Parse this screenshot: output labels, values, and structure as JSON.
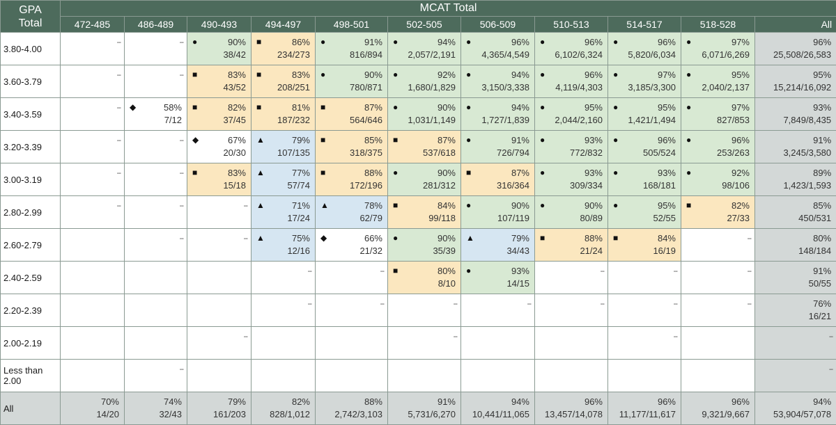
{
  "header": {
    "gpa_label_line1": "GPA",
    "gpa_label_line2": "Total",
    "mcat_label": "MCAT Total"
  },
  "columns": [
    "472-485",
    "486-489",
    "490-493",
    "494-497",
    "498-501",
    "502-505",
    "506-509",
    "510-513",
    "514-517",
    "518-528",
    "All"
  ],
  "legend_symbols": {
    "dot": "●",
    "square": "■",
    "triangle": "▲",
    "diamond": "◆"
  },
  "colors": {
    "header": "#4d6b5c",
    "green": "#d8e9d3",
    "yellow": "#fbe7bf",
    "blue": "#d6e6f2",
    "gray": "#d3d8d7"
  },
  "rows": [
    {
      "label": "3.80-4.00",
      "cells": [
        {
          "t": "dash"
        },
        {
          "t": "dash"
        },
        {
          "pct": "90%",
          "frac": "38/42",
          "sym": "●",
          "c": "green"
        },
        {
          "pct": "86%",
          "frac": "234/273",
          "sym": "■",
          "c": "yellow"
        },
        {
          "pct": "91%",
          "frac": "816/894",
          "sym": "●",
          "c": "green"
        },
        {
          "pct": "94%",
          "frac": "2,057/2,191",
          "sym": "●",
          "c": "green"
        },
        {
          "pct": "96%",
          "frac": "4,365/4,549",
          "sym": "●",
          "c": "green"
        },
        {
          "pct": "96%",
          "frac": "6,102/6,324",
          "sym": "●",
          "c": "green"
        },
        {
          "pct": "96%",
          "frac": "5,820/6,034",
          "sym": "●",
          "c": "green"
        },
        {
          "pct": "97%",
          "frac": "6,071/6,269",
          "sym": "●",
          "c": "green"
        },
        {
          "pct": "96%",
          "frac": "25,508/26,583",
          "c": "gray"
        }
      ]
    },
    {
      "label": "3.60-3.79",
      "cells": [
        {
          "t": "dash"
        },
        {
          "t": "dash"
        },
        {
          "pct": "83%",
          "frac": "43/52",
          "sym": "■",
          "c": "yellow"
        },
        {
          "pct": "83%",
          "frac": "208/251",
          "sym": "■",
          "c": "yellow"
        },
        {
          "pct": "90%",
          "frac": "780/871",
          "sym": "●",
          "c": "green"
        },
        {
          "pct": "92%",
          "frac": "1,680/1,829",
          "sym": "●",
          "c": "green"
        },
        {
          "pct": "94%",
          "frac": "3,150/3,338",
          "sym": "●",
          "c": "green"
        },
        {
          "pct": "96%",
          "frac": "4,119/4,303",
          "sym": "●",
          "c": "green"
        },
        {
          "pct": "97%",
          "frac": "3,185/3,300",
          "sym": "●",
          "c": "green"
        },
        {
          "pct": "95%",
          "frac": "2,040/2,137",
          "sym": "●",
          "c": "green"
        },
        {
          "pct": "95%",
          "frac": "15,214/16,092",
          "c": "gray"
        }
      ]
    },
    {
      "label": "3.40-3.59",
      "cells": [
        {
          "t": "dash"
        },
        {
          "pct": "58%",
          "frac": "7/12",
          "sym": "◆",
          "c": "white"
        },
        {
          "pct": "82%",
          "frac": "37/45",
          "sym": "■",
          "c": "yellow"
        },
        {
          "pct": "81%",
          "frac": "187/232",
          "sym": "■",
          "c": "yellow"
        },
        {
          "pct": "87%",
          "frac": "564/646",
          "sym": "■",
          "c": "yellow"
        },
        {
          "pct": "90%",
          "frac": "1,031/1,149",
          "sym": "●",
          "c": "green"
        },
        {
          "pct": "94%",
          "frac": "1,727/1,839",
          "sym": "●",
          "c": "green"
        },
        {
          "pct": "95%",
          "frac": "2,044/2,160",
          "sym": "●",
          "c": "green"
        },
        {
          "pct": "95%",
          "frac": "1,421/1,494",
          "sym": "●",
          "c": "green"
        },
        {
          "pct": "97%",
          "frac": "827/853",
          "sym": "●",
          "c": "green"
        },
        {
          "pct": "93%",
          "frac": "7,849/8,435",
          "c": "gray"
        }
      ]
    },
    {
      "label": "3.20-3.39",
      "cells": [
        {
          "t": "dash"
        },
        {
          "t": "dash"
        },
        {
          "pct": "67%",
          "frac": "20/30",
          "sym": "◆",
          "c": "white"
        },
        {
          "pct": "79%",
          "frac": "107/135",
          "sym": "▲",
          "c": "blue"
        },
        {
          "pct": "85%",
          "frac": "318/375",
          "sym": "■",
          "c": "yellow"
        },
        {
          "pct": "87%",
          "frac": "537/618",
          "sym": "■",
          "c": "yellow"
        },
        {
          "pct": "91%",
          "frac": "726/794",
          "sym": "●",
          "c": "green"
        },
        {
          "pct": "93%",
          "frac": "772/832",
          "sym": "●",
          "c": "green"
        },
        {
          "pct": "96%",
          "frac": "505/524",
          "sym": "●",
          "c": "green"
        },
        {
          "pct": "96%",
          "frac": "253/263",
          "sym": "●",
          "c": "green"
        },
        {
          "pct": "91%",
          "frac": "3,245/3,580",
          "c": "gray"
        }
      ]
    },
    {
      "label": "3.00-3.19",
      "cells": [
        {
          "t": "dash"
        },
        {
          "t": "dash"
        },
        {
          "pct": "83%",
          "frac": "15/18",
          "sym": "■",
          "c": "yellow"
        },
        {
          "pct": "77%",
          "frac": "57/74",
          "sym": "▲",
          "c": "blue"
        },
        {
          "pct": "88%",
          "frac": "172/196",
          "sym": "■",
          "c": "yellow"
        },
        {
          "pct": "90%",
          "frac": "281/312",
          "sym": "●",
          "c": "green"
        },
        {
          "pct": "87%",
          "frac": "316/364",
          "sym": "■",
          "c": "yellow"
        },
        {
          "pct": "93%",
          "frac": "309/334",
          "sym": "●",
          "c": "green"
        },
        {
          "pct": "93%",
          "frac": "168/181",
          "sym": "●",
          "c": "green"
        },
        {
          "pct": "92%",
          "frac": "98/106",
          "sym": "●",
          "c": "green"
        },
        {
          "pct": "89%",
          "frac": "1,423/1,593",
          "c": "gray"
        }
      ]
    },
    {
      "label": "2.80-2.99",
      "cells": [
        {
          "t": "dash"
        },
        {
          "t": "dash"
        },
        {
          "t": "dash"
        },
        {
          "pct": "71%",
          "frac": "17/24",
          "sym": "▲",
          "c": "blue"
        },
        {
          "pct": "78%",
          "frac": "62/79",
          "sym": "▲",
          "c": "blue"
        },
        {
          "pct": "84%",
          "frac": "99/118",
          "sym": "■",
          "c": "yellow"
        },
        {
          "pct": "90%",
          "frac": "107/119",
          "sym": "●",
          "c": "green"
        },
        {
          "pct": "90%",
          "frac": "80/89",
          "sym": "●",
          "c": "green"
        },
        {
          "pct": "95%",
          "frac": "52/55",
          "sym": "●",
          "c": "green"
        },
        {
          "pct": "82%",
          "frac": "27/33",
          "sym": "■",
          "c": "yellow"
        },
        {
          "pct": "85%",
          "frac": "450/531",
          "c": "gray"
        }
      ]
    },
    {
      "label": "2.60-2.79",
      "cells": [
        {
          "t": "empty"
        },
        {
          "t": "dash"
        },
        {
          "t": "dash"
        },
        {
          "pct": "75%",
          "frac": "12/16",
          "sym": "▲",
          "c": "blue"
        },
        {
          "pct": "66%",
          "frac": "21/32",
          "sym": "◆",
          "c": "white"
        },
        {
          "pct": "90%",
          "frac": "35/39",
          "sym": "●",
          "c": "green"
        },
        {
          "pct": "79%",
          "frac": "34/43",
          "sym": "▲",
          "c": "blue"
        },
        {
          "pct": "88%",
          "frac": "21/24",
          "sym": "■",
          "c": "yellow"
        },
        {
          "pct": "84%",
          "frac": "16/19",
          "sym": "■",
          "c": "yellow"
        },
        {
          "t": "dash"
        },
        {
          "pct": "80%",
          "frac": "148/184",
          "c": "gray"
        }
      ]
    },
    {
      "label": "2.40-2.59",
      "cells": [
        {
          "t": "empty"
        },
        {
          "t": "empty"
        },
        {
          "t": "empty"
        },
        {
          "t": "dash"
        },
        {
          "t": "dash"
        },
        {
          "pct": "80%",
          "frac": "8/10",
          "sym": "■",
          "c": "yellow"
        },
        {
          "pct": "93%",
          "frac": "14/15",
          "sym": "●",
          "c": "green"
        },
        {
          "t": "dash"
        },
        {
          "t": "dash"
        },
        {
          "t": "dash"
        },
        {
          "pct": "91%",
          "frac": "50/55",
          "c": "gray"
        }
      ]
    },
    {
      "label": "2.20-2.39",
      "cells": [
        {
          "t": "empty"
        },
        {
          "t": "empty"
        },
        {
          "t": "empty"
        },
        {
          "t": "dash"
        },
        {
          "t": "dash"
        },
        {
          "t": "dash"
        },
        {
          "t": "dash"
        },
        {
          "t": "dash"
        },
        {
          "t": "dash"
        },
        {
          "t": "dash"
        },
        {
          "pct": "76%",
          "frac": "16/21",
          "c": "gray"
        }
      ]
    },
    {
      "label": "2.00-2.19",
      "cells": [
        {
          "t": "empty"
        },
        {
          "t": "empty"
        },
        {
          "t": "dash"
        },
        {
          "t": "empty"
        },
        {
          "t": "empty"
        },
        {
          "t": "dash"
        },
        {
          "t": "empty"
        },
        {
          "t": "empty"
        },
        {
          "t": "dash"
        },
        {
          "t": "empty"
        },
        {
          "t": "dash",
          "c": "gray"
        }
      ]
    },
    {
      "label": "Less than 2.00",
      "cells": [
        {
          "t": "empty"
        },
        {
          "t": "dash"
        },
        {
          "t": "empty"
        },
        {
          "t": "empty"
        },
        {
          "t": "empty"
        },
        {
          "t": "empty"
        },
        {
          "t": "empty"
        },
        {
          "t": "empty"
        },
        {
          "t": "empty"
        },
        {
          "t": "empty"
        },
        {
          "t": "dash",
          "c": "gray"
        }
      ]
    },
    {
      "label": "All",
      "cells": [
        {
          "pct": "70%",
          "frac": "14/20",
          "c": "gray"
        },
        {
          "pct": "74%",
          "frac": "32/43",
          "c": "gray"
        },
        {
          "pct": "79%",
          "frac": "161/203",
          "c": "gray"
        },
        {
          "pct": "82%",
          "frac": "828/1,012",
          "c": "gray"
        },
        {
          "pct": "88%",
          "frac": "2,742/3,103",
          "c": "gray"
        },
        {
          "pct": "91%",
          "frac": "5,731/6,270",
          "c": "gray"
        },
        {
          "pct": "94%",
          "frac": "10,441/11,065",
          "c": "gray"
        },
        {
          "pct": "96%",
          "frac": "13,457/14,078",
          "c": "gray"
        },
        {
          "pct": "96%",
          "frac": "11,177/11,617",
          "c": "gray"
        },
        {
          "pct": "96%",
          "frac": "9,321/9,667",
          "c": "gray"
        },
        {
          "pct": "94%",
          "frac": "53,904/57,078",
          "c": "gray"
        }
      ]
    }
  ]
}
